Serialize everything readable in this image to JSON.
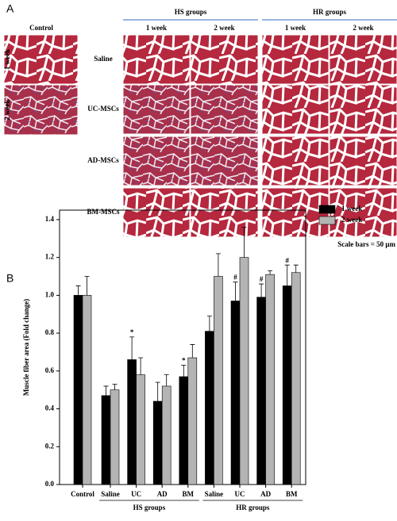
{
  "panel_a": {
    "label": "A",
    "control_title": "Control",
    "control_rows": [
      "1 week",
      "2 week"
    ],
    "groups": [
      {
        "name": "HS groups",
        "columns": [
          "1 week",
          "2 week"
        ]
      },
      {
        "name": "HR groups",
        "columns": [
          "1 week",
          "2 week"
        ]
      }
    ],
    "rows": [
      "Saline",
      "UC-MSCs",
      "AD-MSCs",
      "BM-MSCs"
    ],
    "scale_note": "Scale bars = 50 μm"
  },
  "chart_data": {
    "type": "bar",
    "panel_label": "B",
    "y_label": "Muscle fiber area (Fold change)",
    "categories": [
      "Control",
      "Saline",
      "UC",
      "AD",
      "BM",
      "Saline",
      "UC",
      "AD",
      "BM"
    ],
    "category_groups": [
      "HS groups",
      "HR groups"
    ],
    "series": [
      {
        "name": "1 week",
        "color": "#000000",
        "values": [
          1.0,
          0.47,
          0.66,
          0.44,
          0.57,
          0.81,
          0.97,
          0.99,
          1.05
        ],
        "errors": [
          0.05,
          0.05,
          0.12,
          0.1,
          0.06,
          0.08,
          0.1,
          0.07,
          0.11
        ],
        "markers": [
          null,
          null,
          "*",
          null,
          "*",
          null,
          "#",
          "#",
          "#"
        ]
      },
      {
        "name": "2 week",
        "color": "#b4b4b4",
        "values": [
          1.0,
          0.5,
          0.58,
          0.52,
          0.67,
          1.1,
          1.2,
          1.11,
          1.12
        ],
        "errors": [
          0.1,
          0.03,
          0.09,
          0.06,
          0.07,
          0.12,
          0.16,
          0.02,
          0.04
        ]
      }
    ],
    "ylim": [
      0,
      1.45
    ],
    "yticks": [
      {
        "value": 0,
        "label": "0.0"
      },
      {
        "value": 0.2,
        "label": "0.2"
      },
      {
        "value": 0.4,
        "label": "0.4"
      },
      {
        "value": 0.6,
        "label": "0.6"
      },
      {
        "value": 0.8,
        "label": "0.8"
      },
      {
        "value": 1.0,
        "label": "1.0"
      },
      {
        "value": 1.2,
        "label": "1.2"
      },
      {
        "value": 1.4,
        "label": "1.4"
      }
    ],
    "legend": "top-right"
  }
}
